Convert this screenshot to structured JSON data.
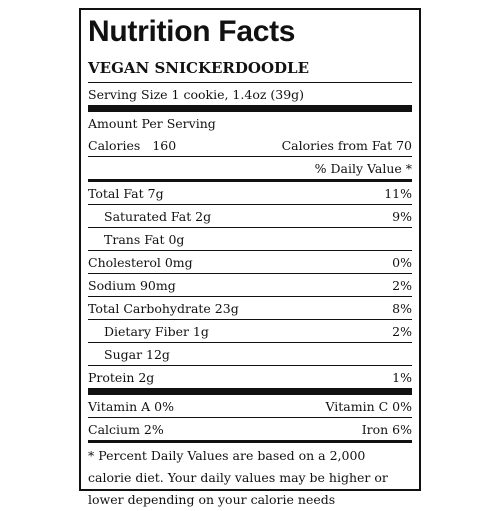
{
  "label": {
    "title": "Nutrition Facts",
    "product": "VEGAN SNICKERDOODLE",
    "serving_size": "Serving Size 1 cookie, 1.4oz (39g)",
    "amount_per_serving": "Amount Per Serving",
    "calories_label": "Calories",
    "calories_value": "160",
    "calories_from_fat": "Calories from Fat 70",
    "daily_value_header": "% Daily Value *",
    "nutrients": [
      {
        "name": "Total Fat 7g",
        "dv": "11%"
      },
      {
        "name": "Saturated Fat 2g",
        "dv": "9%"
      },
      {
        "name": "Trans Fat 0g",
        "dv": ""
      },
      {
        "name": "Cholesterol 0mg",
        "dv": "0%"
      },
      {
        "name": "Sodium 90mg",
        "dv": "2%"
      },
      {
        "name": "Total Carbohydrate 23g",
        "dv": "8%"
      },
      {
        "name": "Dietary Fiber 1g",
        "dv": "2%"
      },
      {
        "name": "Sugar 12g",
        "dv": ""
      },
      {
        "name": "Protein 2g",
        "dv": "1%"
      }
    ],
    "vitamins": [
      {
        "left": "Vitamin A 0%",
        "right": "Vitamin C 0%"
      },
      {
        "left": "Calcium 2%",
        "right": "Iron 6%"
      }
    ],
    "footnote": "* Percent Daily Values are based on a 2,000 calorie diet. Your daily values may be higher or lower depending on your calorie needs"
  }
}
